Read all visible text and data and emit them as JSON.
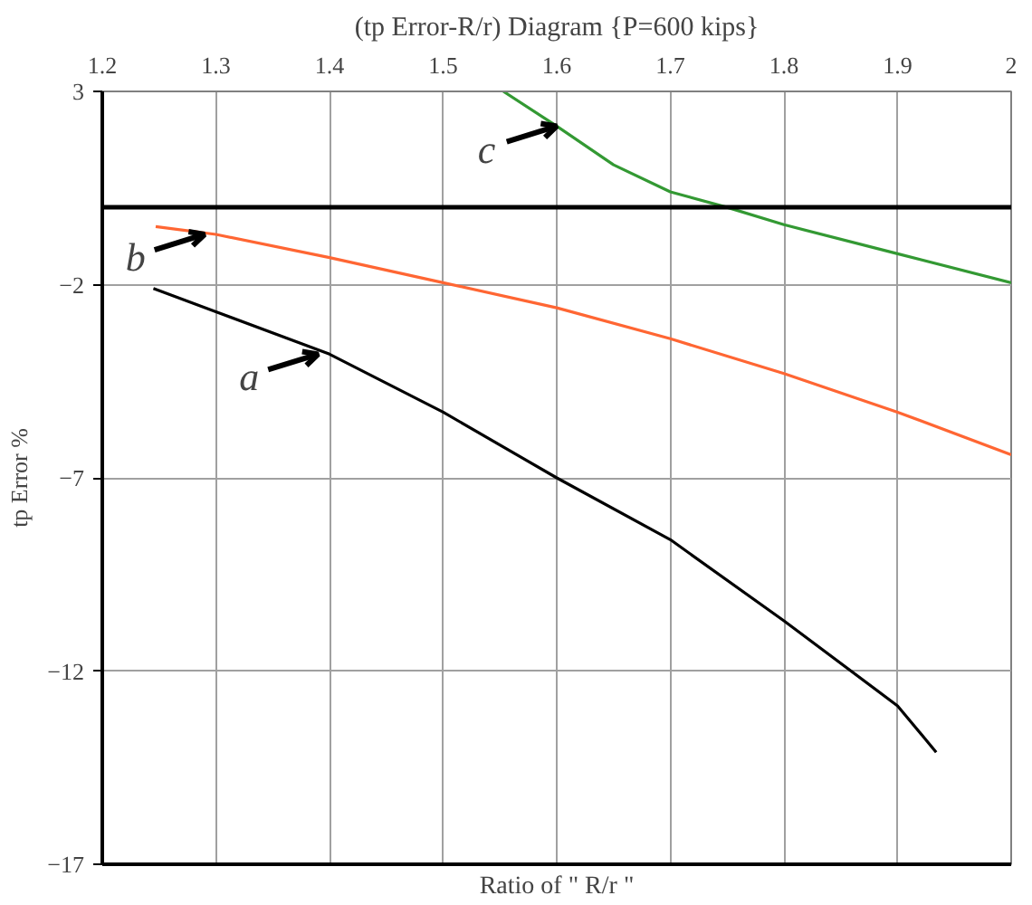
{
  "chart_data": {
    "type": "line",
    "title": "(tp Error-R/r) Diagram {P=600 kips}",
    "xlabel": "Ratio of \" R/r \"",
    "ylabel": "tp Error %",
    "xlim": [
      1.2,
      2
    ],
    "xticks": [
      1.2,
      1.3,
      1.4,
      1.5,
      1.6,
      1.7,
      1.8,
      1.9,
      2
    ],
    "ylim": [
      -17,
      3
    ],
    "yticks": [
      3,
      -2,
      -7,
      -12,
      -17
    ],
    "grid": true,
    "marker": "none",
    "line_style": "solid",
    "series": [
      {
        "color": "#000000",
        "x": [
          1.245,
          1.3,
          1.4,
          1.5,
          1.6,
          1.7,
          1.8,
          1.9,
          1.934
        ],
        "values": [
          -2.1,
          -2.7,
          -3.8,
          -5.3,
          -7.0,
          -8.6,
          -10.7,
          -12.9,
          -14.1
        ]
      },
      {
        "color": "#ff6633",
        "x": [
          1.247,
          1.3,
          1.4,
          1.5,
          1.6,
          1.7,
          1.8,
          1.9,
          2.0
        ],
        "values": [
          -0.5,
          -0.7,
          -1.3,
          -1.95,
          -2.6,
          -3.4,
          -4.3,
          -5.3,
          -6.4
        ]
      },
      {
        "color": "#339933",
        "x": [
          1.553,
          1.6,
          1.65,
          1.7,
          1.75,
          1.8,
          1.9,
          2.0
        ],
        "values": [
          3.0,
          2.1,
          1.1,
          0.4,
          0.0,
          -0.45,
          -1.2,
          -1.95
        ]
      }
    ],
    "ref_lines": [
      {
        "axis": "y",
        "value": 0,
        "color": "#000000"
      }
    ],
    "annotations": [
      {
        "text": "a",
        "x": 1.39,
        "y": -3.8
      },
      {
        "text": "b",
        "x": 1.29,
        "y": -0.7
      },
      {
        "text": "c",
        "x": 1.6,
        "y": 2.1
      }
    ]
  }
}
